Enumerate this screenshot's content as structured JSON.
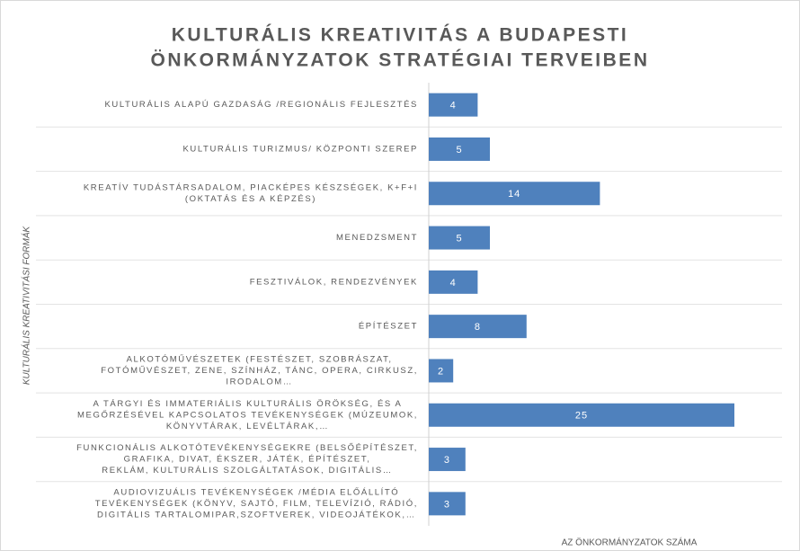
{
  "chart_data": {
    "type": "bar",
    "orientation": "horizontal",
    "title": [
      "KULTURÁLIS KREATIVITÁS A BUDAPESTI",
      "ÖNKORMÁNYZATOK STRATÉGIAI TERVEIBEN"
    ],
    "y_label": "KULTURÁLIS KREATIVITÁSI FORMÁK",
    "x_label": "AZ ÖNKORMÁNYZATOK SZÁMA",
    "categories": [
      [
        "KULTURÁLIS ALAPÚ GAZDASÁG /REGIONÁLIS FEJLESZTÉS"
      ],
      [
        "KULTURÁLIS TURIZMUS/ KÖZPONTI SZEREP"
      ],
      [
        "KREATÍV TUDÁSTÁRSADALOM, PIACKÉPES KÉSZSÉGEK, K+F+I",
        "(OKTATÁS ÉS A KÉPZÉS)"
      ],
      [
        "MENEDZSMENT"
      ],
      [
        "FESZTIVÁLOK, RENDEZVÉNYEK"
      ],
      [
        "ÉPÍTÉSZET"
      ],
      [
        "ALKOTÓMŰVÉSZETEK (FESTÉSZET, SZOBRÁSZAT,",
        "FOTÓMŰVÉSZET, ZENE, SZÍNHÁZ, TÁNC, OPERA, CIRKUSZ,",
        "IRODALOM…"
      ],
      [
        "A TÁRGYI ÉS IMMATERIÁLIS KULTURÁLIS ÖRÖKSÉG, ÉS A",
        "MEGŐRZÉSÉVEL KAPCSOLATOS TEVÉKENYSÉGEK (MÚZEUMOK,",
        "KÖNYVTÁRAK, LEVÉLTÁRAK,…"
      ],
      [
        "FUNKCIONÁLIS ALKOTÓTEVÉKENYSÉGEKRE (BELSŐÉPÍTÉSZET,",
        "GRAFIKA, DIVAT, ÉKSZER, JÁTÉK, ÉPÍTÉSZET,",
        "REKLÁM, KULTURÁLIS SZOLGÁLTATÁSOK, DIGITÁLIS…"
      ],
      [
        "AUDIOVIZUÁLIS TEVÉKENYSÉGEK /MÉDIA ELŐÁLLÍTÓ",
        "TEVÉKENYSÉGEK (KÖNYV, SAJTÓ, FILM, TELEVÍZIÓ, RÁDIÓ,",
        "DIGITÁLIS TARTALOMIPAR,SZOFTVEREK, VIDEOJÁTÉKOK,…"
      ]
    ],
    "values": [
      4,
      5,
      14,
      5,
      4,
      8,
      2,
      25,
      3,
      3
    ],
    "color": "#4f81bd",
    "xlim": [
      0,
      25
    ]
  }
}
